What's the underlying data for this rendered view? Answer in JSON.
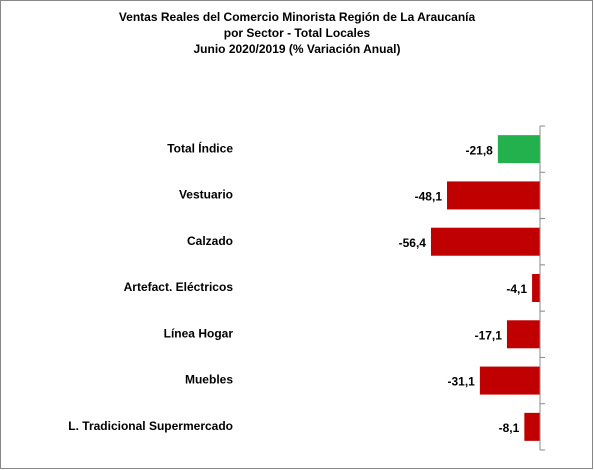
{
  "chart_data": {
    "type": "bar",
    "orientation": "horizontal",
    "title": [
      "Ventas Reales del Comercio Minorista  Región de La Araucanía",
      "por Sector  - Total Locales",
      "Junio 2020/2019 (% Variación Anual)"
    ],
    "categories": [
      "Total Índice",
      "Vestuario",
      "Calzado",
      "Artefact. Eléctricos",
      "Línea Hogar",
      "Muebles",
      "L. Tradicional Supermercado"
    ],
    "values": [
      -21.8,
      -48.1,
      -56.4,
      -4.1,
      -17.1,
      -31.1,
      -8.1
    ],
    "value_labels": [
      "-21,8",
      "-48,1",
      "-56,4",
      "-4,1",
      "-17,1",
      "-31,1",
      "-8,1"
    ],
    "colors": [
      "#22b14c",
      "#c00000",
      "#c00000",
      "#c00000",
      "#c00000",
      "#c00000",
      "#c00000"
    ],
    "xlim": [
      -60,
      0
    ]
  }
}
